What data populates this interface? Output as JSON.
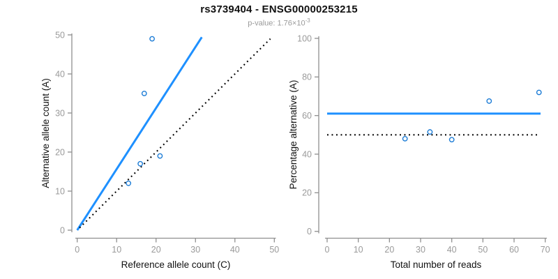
{
  "header": {
    "title": "rs3739404 - ENSG00000253215",
    "pvalue_base": "p-value: 1.76×10",
    "pvalue_exponent": "-3"
  },
  "colors": {
    "title_text": "#111111",
    "subtitle_gray": "#9a9a9a",
    "axis_line_gray": "#8f8f8f",
    "tick_label_gray": "#9a9a9a",
    "axis_label_text": "#111111",
    "accent_blue": "#1E90FF",
    "point_blue": "#1C7CD6",
    "dotted_black": "#000000"
  },
  "chart_data": [
    {
      "type": "scatter",
      "name": "allele-counts-scatter",
      "xlabel": "Reference allele count (C)",
      "ylabel": "Alternative allele count (A)",
      "xlim": [
        0,
        50
      ],
      "ylim": [
        0,
        50
      ],
      "xticks": [
        0,
        10,
        20,
        30,
        40,
        50
      ],
      "yticks": [
        0,
        10,
        20,
        30,
        40,
        50
      ],
      "grid": false,
      "legend": null,
      "points": [
        {
          "x": 13,
          "y": 12
        },
        {
          "x": 16,
          "y": 17
        },
        {
          "x": 21,
          "y": 19
        },
        {
          "x": 17,
          "y": 35
        },
        {
          "x": 19,
          "y": 49
        }
      ],
      "lines": [
        {
          "name": "fitted-allelic-ratio-line",
          "style": "solid",
          "color": "#1E90FF",
          "width": 3,
          "x1": 0,
          "y1": 0,
          "x2": 31.6,
          "y2": 49.4
        },
        {
          "name": "identity-line",
          "style": "dotted",
          "color": "#000000",
          "width": 2.1,
          "x1": 0.6,
          "y1": 0.6,
          "x2": 49,
          "y2": 49
        }
      ]
    },
    {
      "type": "scatter",
      "name": "percentage-alternative-scatter",
      "xlabel": "Total number of reads",
      "ylabel": "Percentage alternative (A)",
      "xlim": [
        0,
        70
      ],
      "ylim": [
        0,
        100
      ],
      "xticks": [
        0,
        10,
        20,
        30,
        40,
        50,
        60,
        70
      ],
      "yticks": [
        0,
        20,
        40,
        60,
        80,
        100
      ],
      "grid": false,
      "legend": null,
      "points": [
        {
          "x": 25,
          "y": 48
        },
        {
          "x": 33,
          "y": 51.5
        },
        {
          "x": 40,
          "y": 47.5
        },
        {
          "x": 52,
          "y": 67.5
        },
        {
          "x": 68,
          "y": 72
        }
      ],
      "lines": [
        {
          "name": "fitted-percentage-line",
          "style": "solid",
          "color": "#1E90FF",
          "width": 3,
          "x1": 0,
          "y1": 61,
          "x2": 68.5,
          "y2": 61
        },
        {
          "name": "null-50-percent-line",
          "style": "dotted",
          "color": "#000000",
          "width": 2.1,
          "x1": 0,
          "y1": 50,
          "x2": 67.5,
          "y2": 50
        }
      ]
    }
  ]
}
